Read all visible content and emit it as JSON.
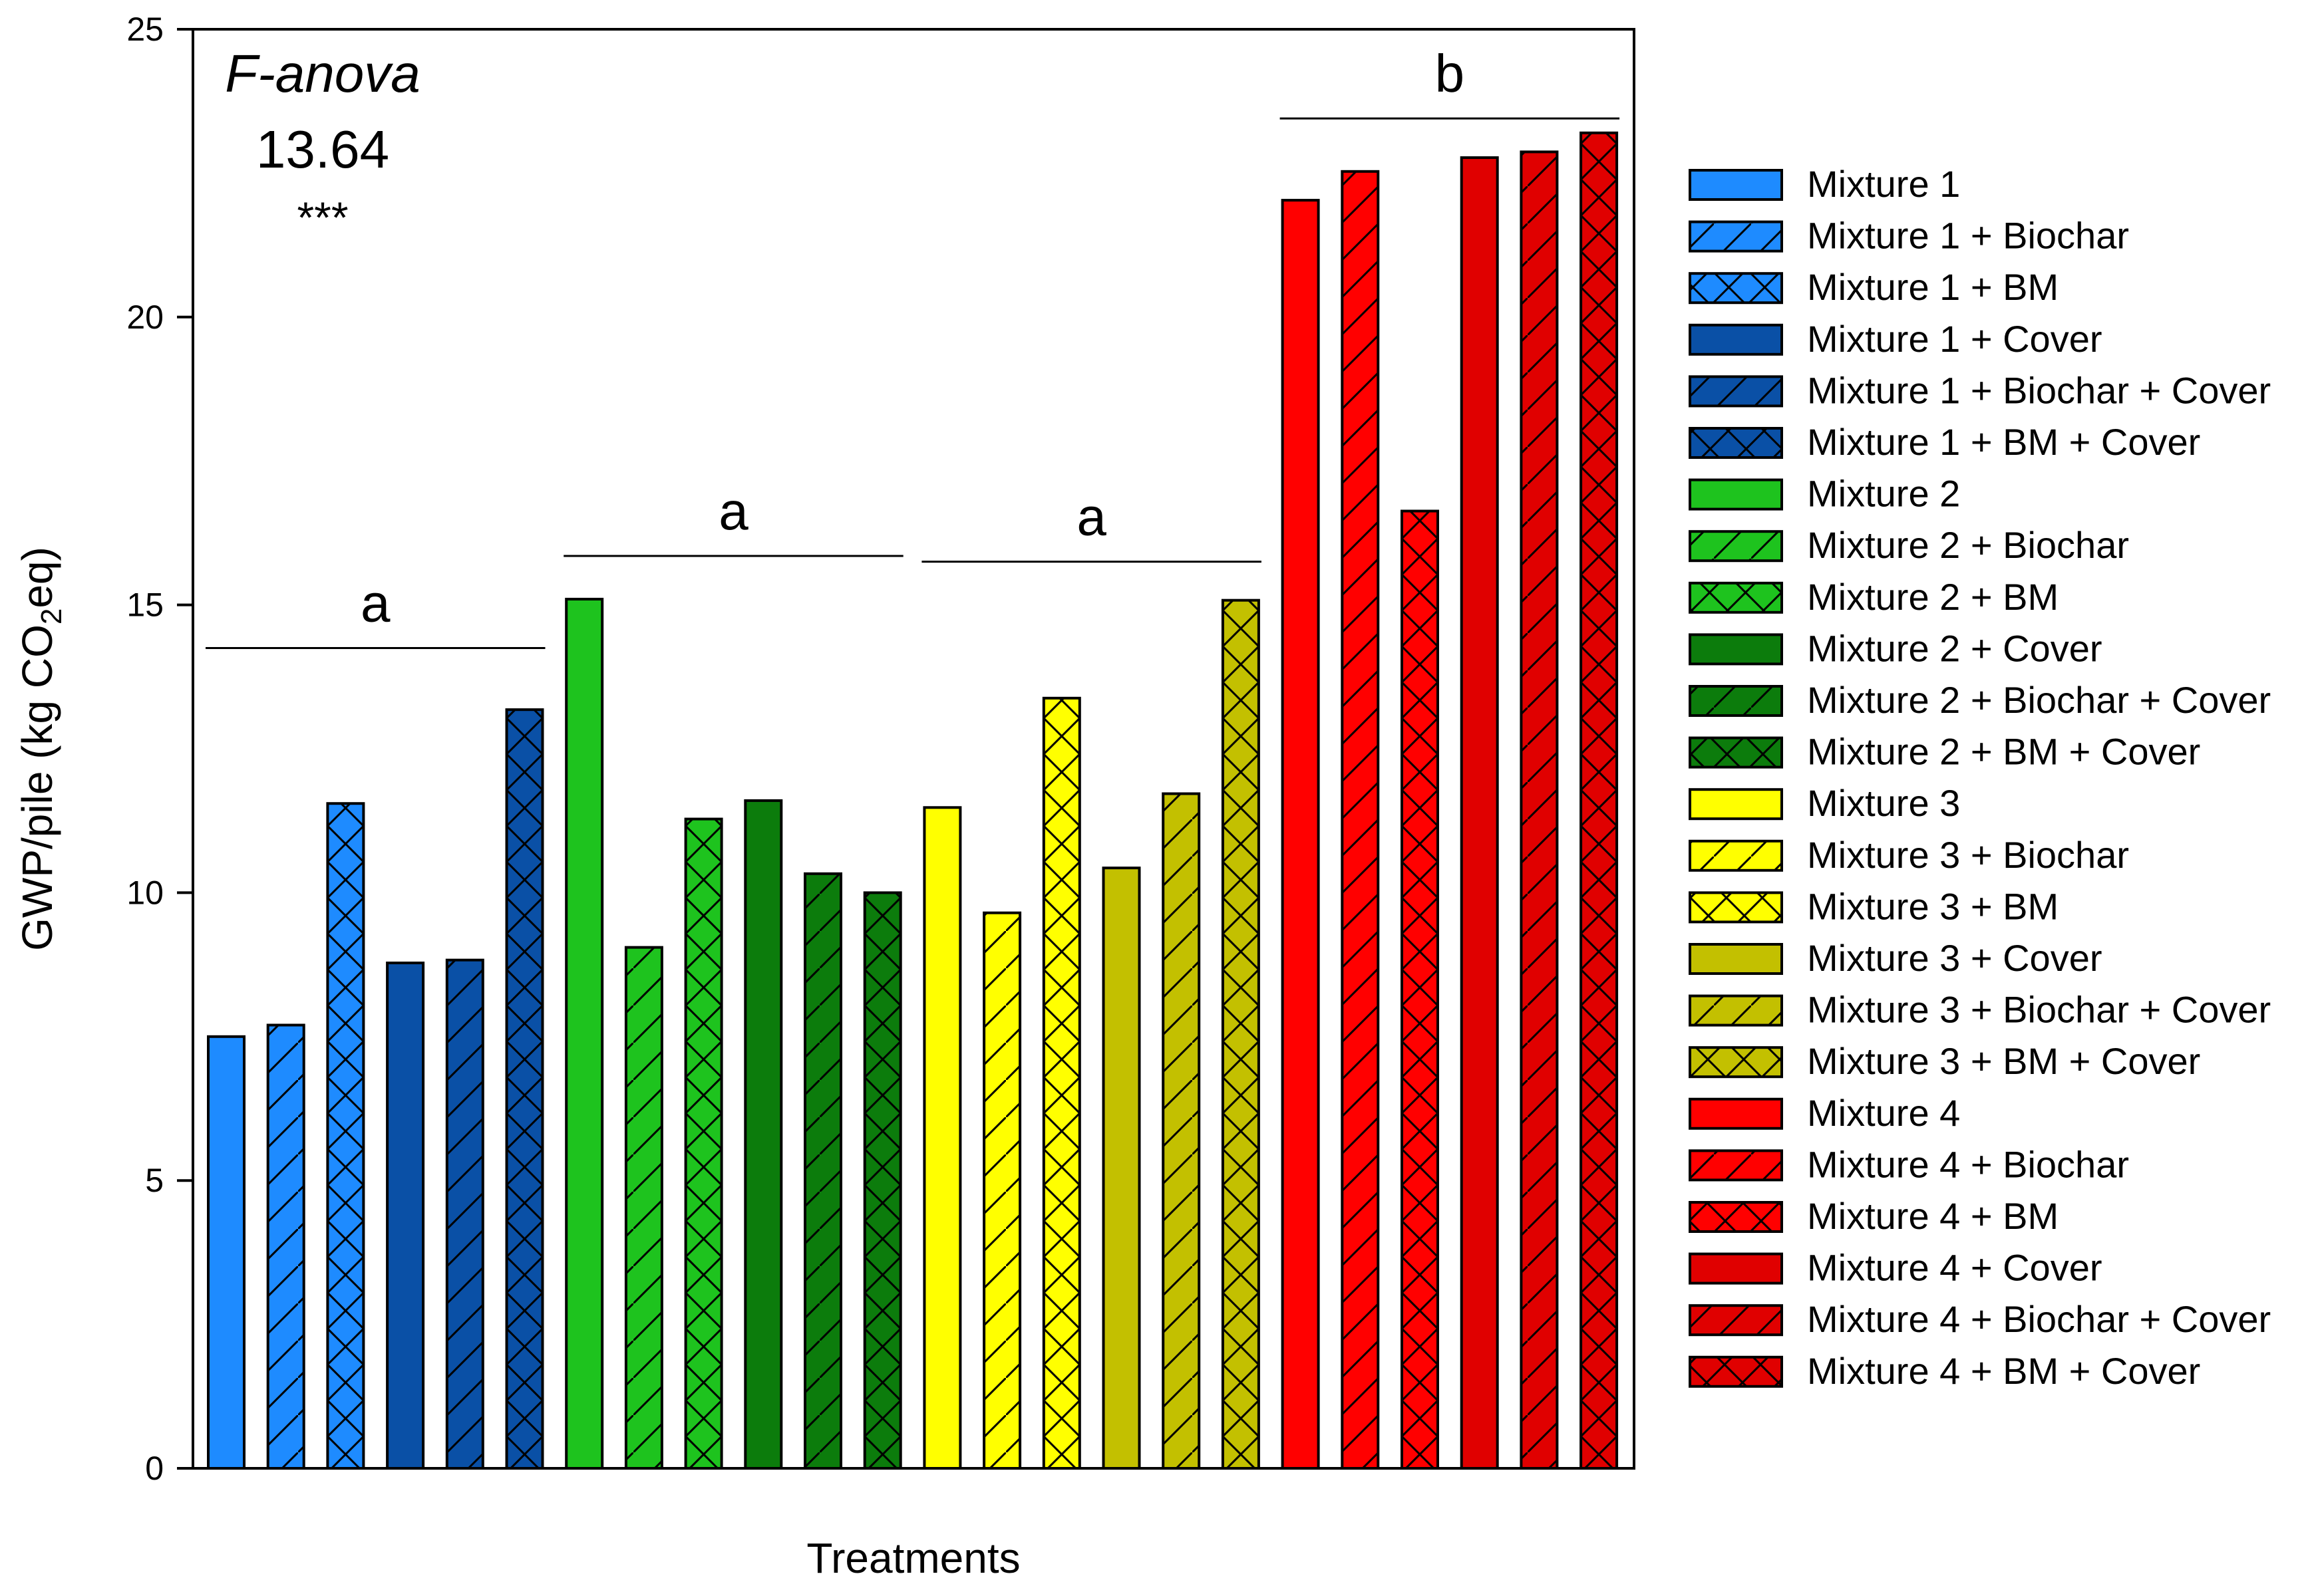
{
  "chart_data": {
    "type": "bar",
    "title": "",
    "xlabel": "Treatments",
    "ylabel_prefix": "GWP/pile (kg CO",
    "ylabel_sub": "2",
    "ylabel_suffix": "eq)",
    "ylim": [
      0,
      25
    ],
    "yticks": [
      {
        "value": 0,
        "label": "0"
      },
      {
        "value": 5,
        "label": "5"
      },
      {
        "value": 10,
        "label": "10"
      },
      {
        "value": 15,
        "label": "15"
      },
      {
        "value": 20,
        "label": "20"
      },
      {
        "value": 25,
        "label": "25"
      }
    ],
    "grid": false,
    "legend_position": "right",
    "annotation": {
      "title": "F-anova",
      "value": "13.64",
      "stars": "***"
    },
    "series": [
      {
        "name": "Mixture 1",
        "value": 7.5,
        "color": "#1e8bff",
        "pattern": "solid"
      },
      {
        "name": "Mixture 1 + Biochar",
        "value": 7.7,
        "color": "#1e8bff",
        "pattern": "diagonal"
      },
      {
        "name": "Mixture 1 + BM",
        "value": 11.55,
        "color": "#1e8bff",
        "pattern": "cross"
      },
      {
        "name": "Mixture 1 + Cover",
        "value": 8.78,
        "color": "#0a50a6",
        "pattern": "solid"
      },
      {
        "name": "Mixture 1 + Biochar + Cover",
        "value": 8.83,
        "color": "#0a50a6",
        "pattern": "diagonal"
      },
      {
        "name": "Mixture 1 + BM + Cover",
        "value": 13.18,
        "color": "#0a50a6",
        "pattern": "cross"
      },
      {
        "name": "Mixture 2",
        "value": 15.1,
        "color": "#1ec31e",
        "pattern": "solid"
      },
      {
        "name": "Mixture 2 + Biochar",
        "value": 9.05,
        "color": "#1ec31e",
        "pattern": "diagonal"
      },
      {
        "name": "Mixture 2 + BM",
        "value": 11.28,
        "color": "#1ec31e",
        "pattern": "cross"
      },
      {
        "name": "Mixture 2 + Cover",
        "value": 11.6,
        "color": "#0c7c0c",
        "pattern": "solid"
      },
      {
        "name": "Mixture 2 + Biochar + Cover",
        "value": 10.33,
        "color": "#0c7c0c",
        "pattern": "diagonal"
      },
      {
        "name": "Mixture 2 + BM + Cover",
        "value": 10.0,
        "color": "#0c7c0c",
        "pattern": "cross"
      },
      {
        "name": "Mixture 3",
        "value": 11.48,
        "color": "#ffff00",
        "pattern": "solid"
      },
      {
        "name": "Mixture 3 + Biochar",
        "value": 9.65,
        "color": "#ffff00",
        "pattern": "diagonal"
      },
      {
        "name": "Mixture 3 + BM",
        "value": 13.38,
        "color": "#ffff00",
        "pattern": "cross"
      },
      {
        "name": "Mixture 3 + Cover",
        "value": 10.43,
        "color": "#c3c000",
        "pattern": "solid"
      },
      {
        "name": "Mixture 3 + Biochar + Cover",
        "value": 11.72,
        "color": "#c3c000",
        "pattern": "diagonal"
      },
      {
        "name": "Mixture 3 + BM + Cover",
        "value": 15.08,
        "color": "#c3c000",
        "pattern": "cross"
      },
      {
        "name": "Mixture 4",
        "value": 22.03,
        "color": "#ff0000",
        "pattern": "solid"
      },
      {
        "name": "Mixture 4 + Biochar",
        "value": 22.53,
        "color": "#ff0000",
        "pattern": "diagonal"
      },
      {
        "name": "Mixture 4 + BM",
        "value": 16.63,
        "color": "#ff0000",
        "pattern": "cross"
      },
      {
        "name": "Mixture 4 + Cover",
        "value": 22.77,
        "color": "#e00000",
        "pattern": "solid"
      },
      {
        "name": "Mixture 4 + Biochar + Cover",
        "value": 22.87,
        "color": "#e00000",
        "pattern": "diagonal"
      },
      {
        "name": "Mixture 4 + BM + Cover",
        "value": 23.2,
        "color": "#e00000",
        "pattern": "cross"
      }
    ],
    "significance_groups": [
      {
        "label": "a",
        "from_index": 0,
        "to_index": 5,
        "line_value": 14.25
      },
      {
        "label": "a",
        "from_index": 6,
        "to_index": 11,
        "line_value": 15.85
      },
      {
        "label": "a",
        "from_index": 12,
        "to_index": 17,
        "line_value": 15.75
      },
      {
        "label": "b",
        "from_index": 18,
        "to_index": 23,
        "line_value": 23.45
      }
    ]
  }
}
